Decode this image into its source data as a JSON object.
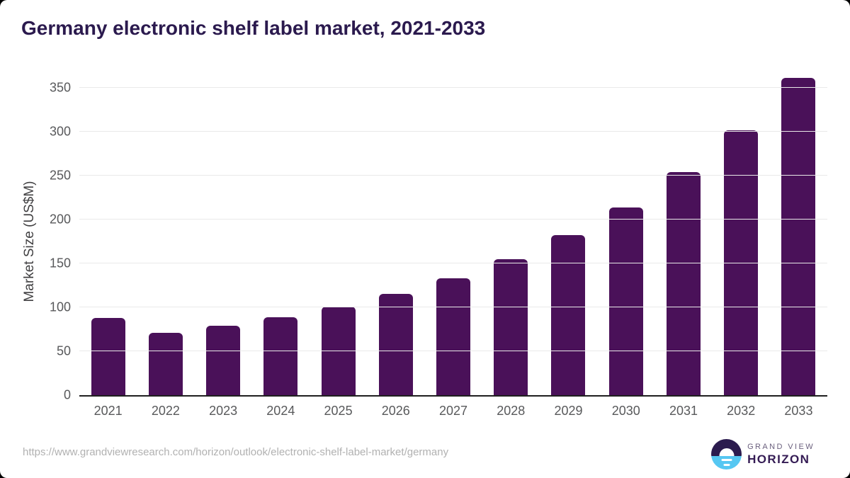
{
  "title": "Germany electronic shelf label market, 2021-2033",
  "chart_data": {
    "type": "bar",
    "title": "Germany electronic shelf label market, 2021-2033",
    "categories": [
      "2021",
      "2022",
      "2023",
      "2024",
      "2025",
      "2026",
      "2027",
      "2028",
      "2029",
      "2030",
      "2031",
      "2032",
      "2033"
    ],
    "values": [
      88,
      71,
      79,
      89,
      101,
      115,
      133,
      155,
      182,
      214,
      254,
      302,
      361
    ],
    "xlabel": "",
    "ylabel": "Market Size (US$M)",
    "ylim": [
      0,
      350
    ],
    "yticks": [
      0,
      50,
      100,
      150,
      200,
      250,
      300,
      350
    ],
    "grid": true,
    "legend": "none",
    "bar_color": "#4a1159"
  },
  "colors": {
    "title_text": "#2b1a4e",
    "bar": "#4a1159",
    "axis_labels": "#58595b",
    "gridline": "#e9e9e9",
    "axis_line": "#1f1f1f",
    "source_url_text": "#b1b1b1",
    "logo_circle_top": "#2b1b4e",
    "logo_circle_bottom": "#56c7f2",
    "brand_top_text": "#6a5f7d",
    "brand_bottom_text": "#341b54"
  },
  "footer": {
    "source_url": "https://www.grandviewresearch.com/horizon/outlook/electronic-shelf-label-market/germany",
    "logo": {
      "brand_top": "GRAND VIEW",
      "brand_bottom": "HORIZON"
    }
  }
}
